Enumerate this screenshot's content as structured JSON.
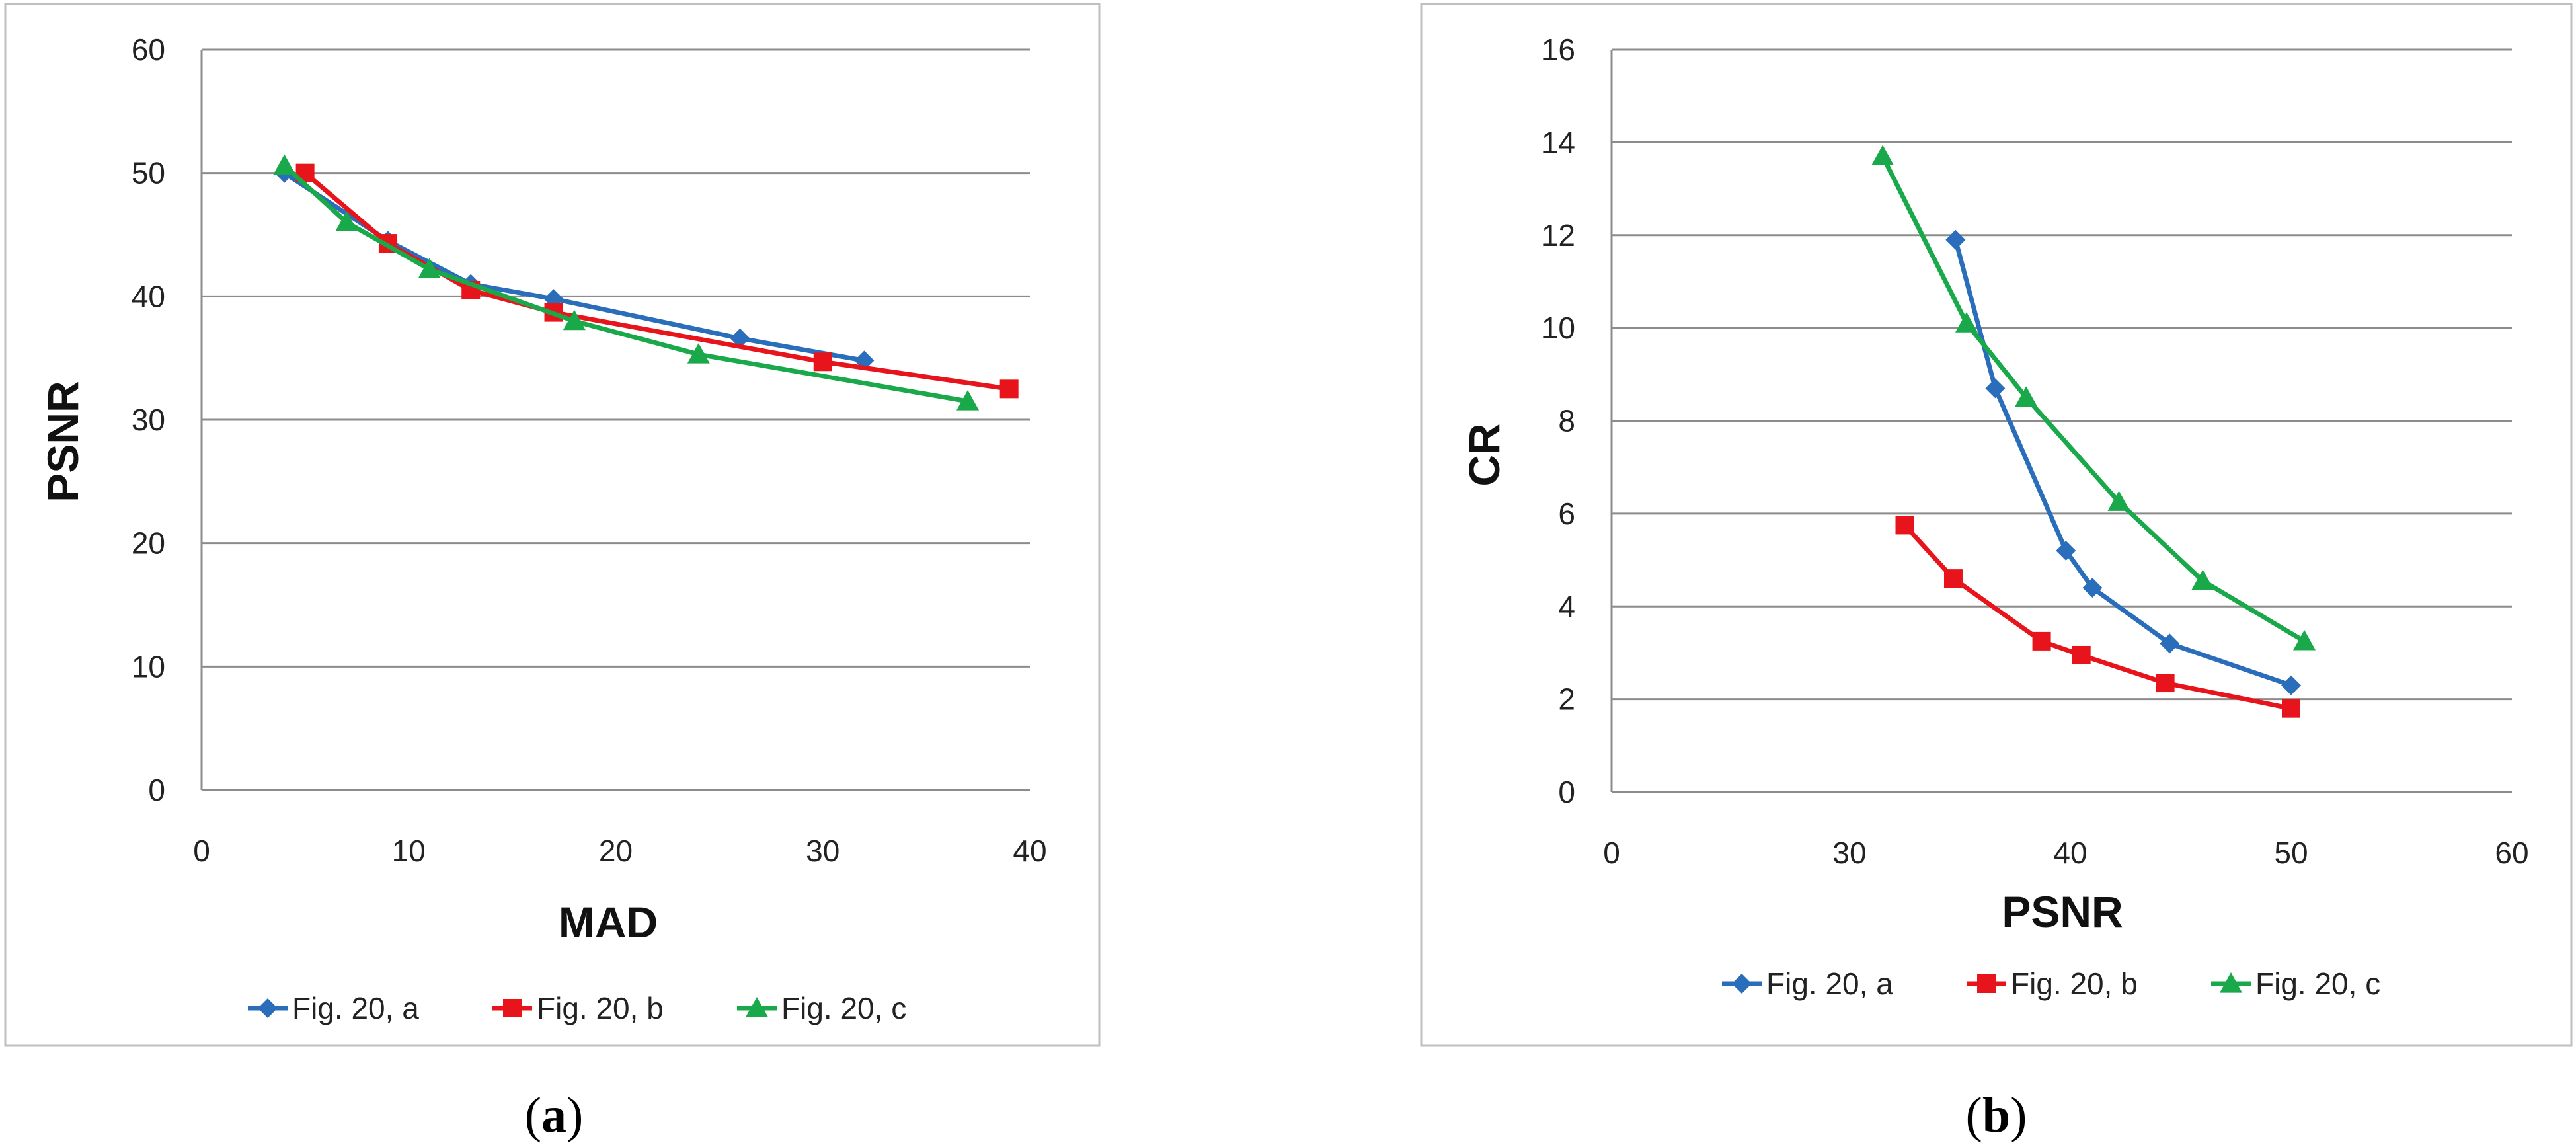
{
  "chart_data": [
    {
      "type": "line",
      "panel_caption": {
        "open": "(",
        "letter": "a",
        "close": ")"
      },
      "xlabel": "MAD",
      "ylabel": "PSNR",
      "xlim": [
        0,
        40
      ],
      "ylim": [
        0,
        60
      ],
      "xticks": [
        "0",
        "10",
        "20",
        "30",
        "40"
      ],
      "yticks": [
        "0",
        "10",
        "20",
        "30",
        "40",
        "50",
        "60"
      ],
      "grid": "horizontal",
      "legend_position": "bottom",
      "series": [
        {
          "name": "Fig. 20, a",
          "color": "#2a6ebb",
          "marker": "diamond",
          "points": [
            [
              4,
              50
            ],
            [
              9,
              44.5
            ],
            [
              13,
              41
            ],
            [
              17,
              39.8
            ],
            [
              26,
              36.6
            ],
            [
              32,
              34.8
            ]
          ]
        },
        {
          "name": "Fig. 20, b",
          "color": "#e8141b",
          "marker": "square",
          "points": [
            [
              5,
              50
            ],
            [
              9,
              44.3
            ],
            [
              13,
              40.5
            ],
            [
              17,
              38.7
            ],
            [
              30,
              34.7
            ],
            [
              39,
              32.5
            ]
          ]
        },
        {
          "name": "Fig. 20, c",
          "color": "#19a84a",
          "marker": "triangle",
          "points": [
            [
              4,
              50.6
            ],
            [
              7,
              46
            ],
            [
              11,
              42.2
            ],
            [
              18,
              38
            ],
            [
              24,
              35.3
            ],
            [
              37,
              31.5
            ]
          ]
        }
      ]
    },
    {
      "type": "line",
      "panel_caption": {
        "open": "(",
        "letter": "b",
        "close": ")"
      },
      "xlabel": "PSNR",
      "ylabel": "CR",
      "xlim": [
        0,
        60
      ],
      "ylim": [
        0,
        16
      ],
      "xticks": [
        "0",
        "30",
        "40",
        "50",
        "60"
      ],
      "yticks": [
        "0",
        "2",
        "4",
        "6",
        "8",
        "10",
        "12",
        "14",
        "16"
      ],
      "grid": "horizontal",
      "legend_position": "bottom",
      "series": [
        {
          "name": "Fig. 20, a",
          "color": "#2a6ebb",
          "marker": "diamond",
          "points": [
            [
              34.8,
              11.9
            ],
            [
              36.6,
              8.7
            ],
            [
              39.8,
              5.2
            ],
            [
              41,
              4.4
            ],
            [
              44.5,
              3.2
            ],
            [
              50,
              2.3
            ]
          ]
        },
        {
          "name": "Fig. 20, b",
          "color": "#e8141b",
          "marker": "square",
          "points": [
            [
              32.5,
              5.75
            ],
            [
              34.7,
              4.6
            ],
            [
              38.7,
              3.25
            ],
            [
              40.5,
              2.95
            ],
            [
              44.3,
              2.35
            ],
            [
              50,
              1.8
            ]
          ]
        },
        {
          "name": "Fig. 20, c",
          "color": "#19a84a",
          "marker": "triangle",
          "points": [
            [
              31.5,
              13.7
            ],
            [
              35.3,
              10.1
            ],
            [
              38,
              8.5
            ],
            [
              42.2,
              6.25
            ],
            [
              46,
              4.55
            ],
            [
              50.6,
              3.25
            ]
          ]
        }
      ]
    }
  ]
}
